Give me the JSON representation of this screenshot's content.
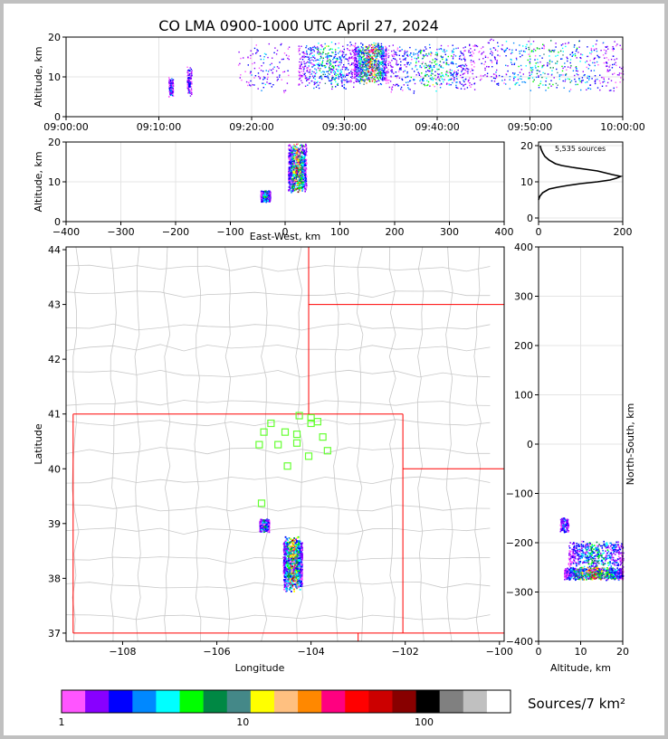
{
  "title": "CO LMA 0900-1000 UTC April 27, 2024",
  "colors": {
    "state_border": "#ff0000",
    "county_border": "#c8c8c8",
    "station_marker": "#66ff33",
    "sounding_line": "#000000"
  },
  "chart_data": [
    {
      "id": "altitude-vs-time",
      "type": "scatter",
      "ylabel": "Altitude, km",
      "xlabel": "",
      "xlim": [
        "09:00:00",
        "10:00:00"
      ],
      "ylim": [
        0,
        20
      ],
      "x_ticks": [
        "09:00:00",
        "09:10:00",
        "09:20:00",
        "09:30:00",
        "09:40:00",
        "09:50:00",
        "10:00:00"
      ],
      "y_ticks": [
        "0",
        "10",
        "20"
      ],
      "clusters": [
        {
          "t0": "09:11:00",
          "t1": "09:11:30",
          "alt0": 5,
          "alt1": 10,
          "density": "low"
        },
        {
          "t0": "09:13:00",
          "t1": "09:13:30",
          "alt0": 5,
          "alt1": 13,
          "density": "low"
        },
        {
          "t0": "09:18:30",
          "t1": "09:24:00",
          "alt0": 5,
          "alt1": 19,
          "density": "low"
        },
        {
          "t0": "09:25:00",
          "t1": "09:31:00",
          "alt0": 7,
          "alt1": 19,
          "density": "medium"
        },
        {
          "t0": "09:31:00",
          "t1": "09:34:30",
          "alt0": 8,
          "alt1": 19,
          "density": "high"
        },
        {
          "t0": "09:34:30",
          "t1": "09:44:00",
          "alt0": 6,
          "alt1": 19,
          "density": "medium"
        },
        {
          "t0": "09:44:00",
          "t1": "10:00:00",
          "alt0": 6,
          "alt1": 20,
          "density": "medium"
        }
      ]
    },
    {
      "id": "altitude-vs-east-west",
      "type": "scatter",
      "xlabel": "East-West, km",
      "ylabel": "Altitude, km",
      "xlim": [
        -400,
        400
      ],
      "ylim": [
        0,
        20
      ],
      "x_ticks": [
        "−400",
        "−300",
        "−200",
        "−100",
        "0",
        "100",
        "200",
        "300",
        "400"
      ],
      "y_ticks": [
        "0",
        "10",
        "20"
      ],
      "clusters": [
        {
          "x0": -45,
          "x1": -28,
          "alt0": 5,
          "alt1": 8,
          "density": "medium"
        },
        {
          "x0": 5,
          "x1": 38,
          "alt0": 7,
          "alt1": 20,
          "density": "high"
        }
      ]
    },
    {
      "id": "altitude-histogram",
      "type": "line",
      "annotation": "5,535 sources",
      "xlim": [
        0,
        200
      ],
      "ylim": [
        0,
        20
      ],
      "x_ticks": [
        "0",
        "200"
      ],
      "y_ticks": [
        "0",
        "10",
        "20"
      ],
      "x": [
        0,
        3,
        10,
        25,
        45,
        70,
        100,
        140,
        170,
        185,
        195,
        175,
        140,
        110,
        80,
        55,
        40,
        25,
        15,
        10,
        6,
        4
      ],
      "y": [
        5,
        6,
        7,
        8,
        8.5,
        9,
        9.5,
        10,
        10.5,
        11,
        11.5,
        12,
        13,
        13.5,
        14,
        14.5,
        15,
        16,
        17,
        18,
        19,
        20
      ]
    },
    {
      "id": "plan-view-map",
      "type": "scatter",
      "xlabel": "Longitude",
      "ylabel": "Latitude",
      "xlim": [
        -109.2,
        -99.9
      ],
      "ylim": [
        36.85,
        44.05
      ],
      "x_ticks": [
        "−108",
        "−106",
        "−104",
        "−102",
        "−100"
      ],
      "y_ticks": [
        "37",
        "38",
        "39",
        "40",
        "41",
        "42",
        "43",
        "44"
      ],
      "stations": [
        {
          "lon": -104.25,
          "lat": 40.97
        },
        {
          "lon": -104.0,
          "lat": 40.93
        },
        {
          "lon": -104.85,
          "lat": 40.83
        },
        {
          "lon": -104.0,
          "lat": 40.83
        },
        {
          "lon": -103.86,
          "lat": 40.86
        },
        {
          "lon": -105.0,
          "lat": 40.67
        },
        {
          "lon": -104.55,
          "lat": 40.67
        },
        {
          "lon": -104.3,
          "lat": 40.63
        },
        {
          "lon": -103.75,
          "lat": 40.58
        },
        {
          "lon": -105.1,
          "lat": 40.44
        },
        {
          "lon": -104.7,
          "lat": 40.44
        },
        {
          "lon": -104.3,
          "lat": 40.47
        },
        {
          "lon": -103.65,
          "lat": 40.33
        },
        {
          "lon": -104.05,
          "lat": 40.23
        },
        {
          "lon": -104.5,
          "lat": 40.05
        },
        {
          "lon": -105.05,
          "lat": 39.37
        }
      ],
      "clusters": [
        {
          "lon0": -105.1,
          "lon1": -104.9,
          "lat0": 38.85,
          "lat1": 39.1,
          "density": "medium"
        },
        {
          "lon0": -104.6,
          "lon1": -104.2,
          "lat0": 37.75,
          "lat1": 38.8,
          "density": "high"
        }
      ]
    },
    {
      "id": "north-south-vs-altitude",
      "type": "scatter",
      "xlabel": "Altitude, km",
      "ylabel": "North-South, km",
      "xlim": [
        0,
        20
      ],
      "ylim": [
        -400,
        400
      ],
      "x_ticks": [
        "0",
        "10",
        "20"
      ],
      "y_ticks": [
        "−400",
        "−300",
        "−200",
        "−100",
        "0",
        "100",
        "200",
        "300",
        "400"
      ],
      "clusters": [
        {
          "alt0": 5,
          "alt1": 7,
          "y0": -180,
          "y1": -145,
          "density": "low"
        },
        {
          "alt0": 7,
          "alt1": 20,
          "y0": -250,
          "y1": -195,
          "density": "medium"
        },
        {
          "alt0": 6,
          "alt1": 20,
          "y0": -275,
          "y1": -248,
          "density": "high"
        }
      ]
    },
    {
      "id": "colorbar",
      "type": "heatmap",
      "label": "Sources/7 km²",
      "tick_labels": [
        "1",
        "10",
        "100"
      ],
      "tick_values": [
        1,
        10,
        100
      ],
      "range": [
        1,
        300
      ],
      "colors": [
        "#ff55ff",
        "#8800ff",
        "#0000ff",
        "#0088ff",
        "#00ffff",
        "#00ff00",
        "#008844",
        "#448888",
        "#ffff00",
        "#ffc080",
        "#ff8800",
        "#ff0080",
        "#ff0000",
        "#cc0000",
        "#880000",
        "#000000",
        "#808080",
        "#c0c0c0",
        "#ffffff"
      ]
    }
  ]
}
